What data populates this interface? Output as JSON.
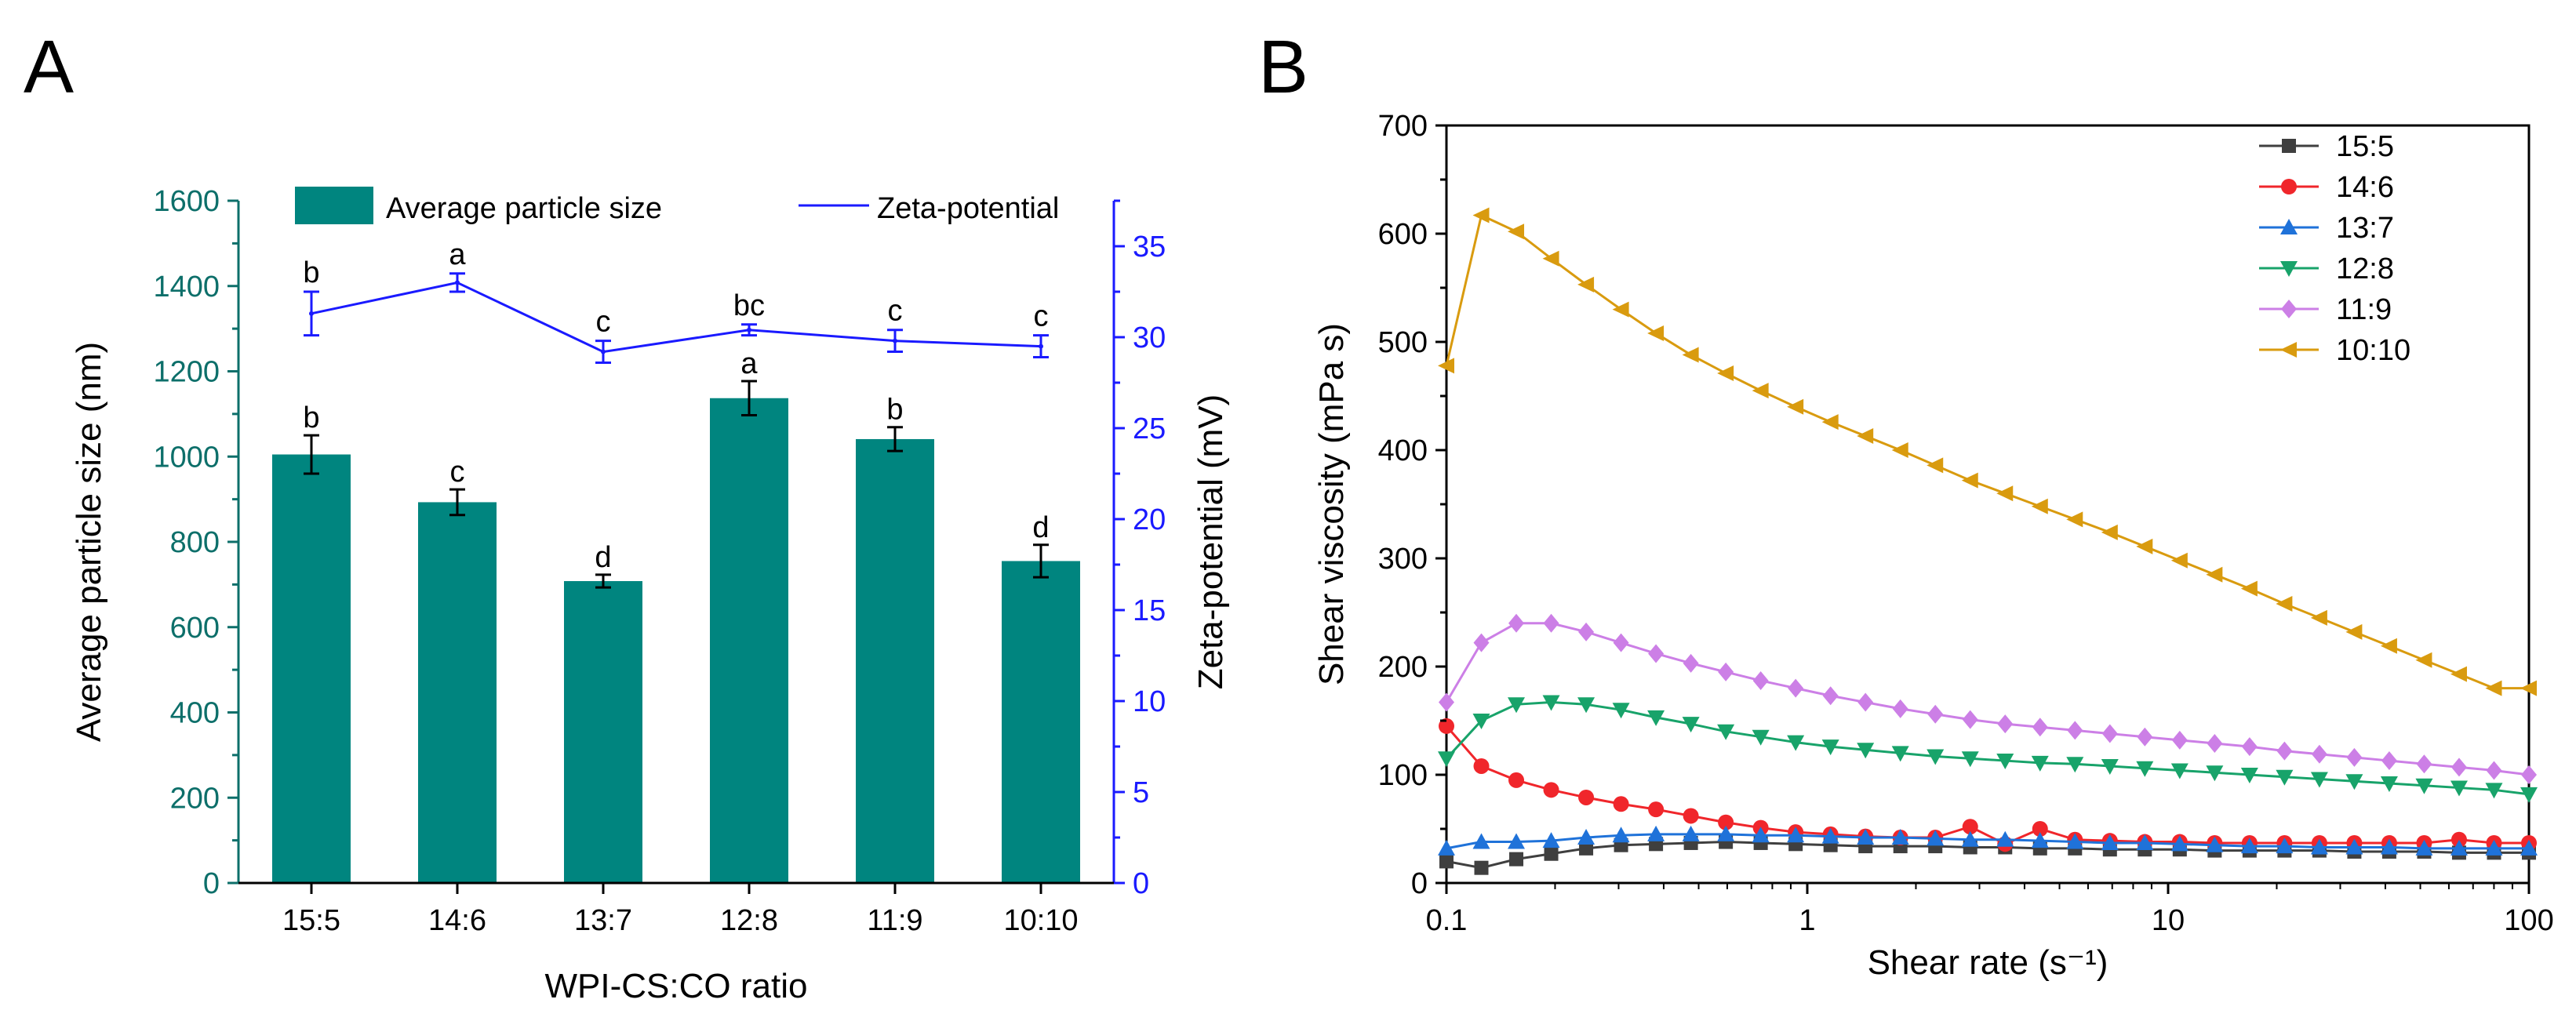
{
  "panels": {
    "a": {
      "label": "A"
    },
    "b": {
      "label": "B"
    }
  },
  "colors": {
    "bar": "#00857f",
    "zeta": "#1a1aff",
    "teal_axis": "#0d6f6a",
    "s15_5": "#3f3f3f",
    "s14_6": "#f0262b",
    "s13_7": "#1f72d9",
    "s12_8": "#18a36a",
    "s11_9": "#cc7fe6",
    "s10_10": "#d99b0f"
  },
  "chart_data": [
    {
      "type": "bar",
      "panel": "A",
      "categories": [
        "15:5",
        "14:6",
        "13:7",
        "12:8",
        "11:9",
        "10:10"
      ],
      "series": [
        {
          "name": "Average particle size",
          "axis": "left",
          "values": [
            1005,
            893,
            708,
            1137,
            1041,
            755
          ],
          "errors": [
            45,
            30,
            15,
            40,
            28,
            38
          ],
          "letters": [
            "b",
            "c",
            "d",
            "a",
            "b",
            "d"
          ]
        },
        {
          "name": "Zeta-potential",
          "type": "line",
          "axis": "right",
          "values": [
            31.3,
            33.0,
            29.2,
            30.4,
            29.8,
            29.5
          ],
          "errors": [
            1.2,
            0.5,
            0.6,
            0.3,
            0.6,
            0.6
          ],
          "letters": [
            "b",
            "a",
            "c",
            "bc",
            "c",
            "c"
          ]
        }
      ],
      "xlabel": "WPI-CS:CO ratio",
      "ylabel": "Average particle size (nm)",
      "y2label": "Zeta-potential (mV)",
      "ylim": [
        0,
        1600
      ],
      "y2lim": [
        0,
        37.5
      ],
      "yticks": [
        "0",
        "200",
        "400",
        "600",
        "800",
        "1000",
        "1200",
        "1400",
        "1600"
      ],
      "y2ticks": [
        "0",
        "5",
        "10",
        "15",
        "20",
        "25",
        "30",
        "35"
      ],
      "legend": [
        "Average particle size",
        "Zeta-potential"
      ],
      "legend_position": "top"
    },
    {
      "type": "line",
      "panel": "B",
      "x_scale": "log",
      "xlim": [
        0.1,
        100
      ],
      "ylim": [
        0,
        700
      ],
      "xticks": [
        "0.1",
        "1",
        "10",
        "100"
      ],
      "yticks": [
        "0",
        "100",
        "200",
        "300",
        "400",
        "500",
        "600",
        "700"
      ],
      "xlabel": "Shear rate (s⁻¹)",
      "ylabel": "Shear viscosity (mPa s)",
      "legend_position": "top-right",
      "series": [
        {
          "name": "15:5",
          "marker": "square",
          "values": [
            20,
            14,
            22,
            27,
            32,
            35,
            36,
            37,
            38,
            37,
            36,
            35,
            34,
            34,
            34,
            33,
            33,
            32,
            32,
            31,
            31,
            31,
            30,
            30,
            30,
            30,
            29,
            29,
            29,
            28,
            28,
            28
          ]
        },
        {
          "name": "14:6",
          "marker": "circle",
          "values": [
            145,
            108,
            95,
            86,
            79,
            73,
            68,
            62,
            56,
            51,
            47,
            45,
            43,
            42,
            42,
            52,
            36,
            50,
            40,
            39,
            38,
            38,
            37,
            37,
            37,
            37,
            37,
            37,
            37,
            40,
            37,
            37
          ]
        },
        {
          "name": "13:7",
          "marker": "triangle-up",
          "values": [
            32,
            38,
            38,
            39,
            42,
            44,
            45,
            45,
            45,
            44,
            44,
            43,
            42,
            42,
            41,
            40,
            40,
            39,
            38,
            37,
            37,
            36,
            35,
            34,
            34,
            33,
            33,
            33,
            32,
            32,
            32,
            32
          ]
        },
        {
          "name": "12:8",
          "marker": "triangle-down",
          "values": [
            115,
            150,
            165,
            167,
            165,
            160,
            153,
            147,
            140,
            135,
            130,
            126,
            123,
            120,
            117,
            115,
            113,
            111,
            110,
            108,
            106,
            104,
            102,
            100,
            98,
            96,
            94,
            92,
            90,
            88,
            86,
            82
          ]
        },
        {
          "name": "11:9",
          "marker": "diamond",
          "values": [
            167,
            222,
            240,
            240,
            232,
            222,
            212,
            203,
            195,
            187,
            180,
            173,
            167,
            161,
            156,
            151,
            147,
            144,
            141,
            138,
            135,
            132,
            129,
            126,
            122,
            119,
            116,
            113,
            110,
            107,
            104,
            100
          ]
        },
        {
          "name": "10:10",
          "marker": "triangle-left",
          "values": [
            478,
            617,
            602,
            577,
            553,
            530,
            508,
            488,
            471,
            455,
            440,
            426,
            413,
            400,
            386,
            372,
            360,
            348,
            336,
            324,
            311,
            298,
            285,
            272,
            258,
            245,
            232,
            219,
            206,
            193,
            180,
            180
          ]
        }
      ]
    }
  ]
}
